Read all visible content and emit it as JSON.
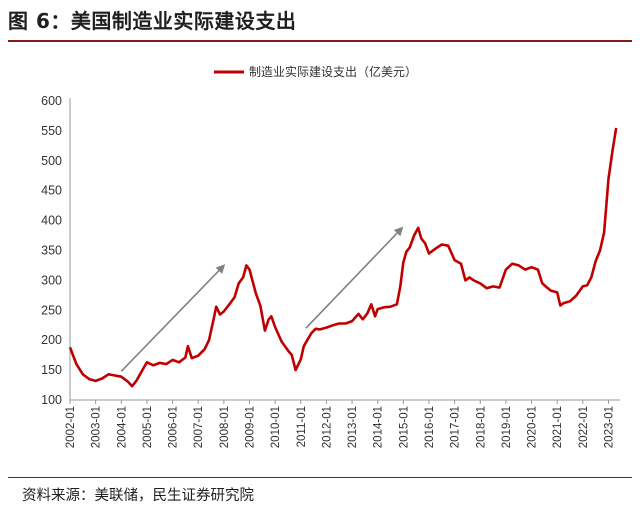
{
  "figure": {
    "title": "图 6：美国制造业实际建设支出",
    "source": "资料来源：美联储，民生证券研究院"
  },
  "colors": {
    "series": "#c00000",
    "arrow": "#808080",
    "rule": "#8b1a1a"
  },
  "chart_data": {
    "type": "line",
    "title": "",
    "xlabel": "",
    "ylabel": "",
    "ylim": [
      100,
      600
    ],
    "yticks": [
      100,
      150,
      200,
      250,
      300,
      350,
      400,
      450,
      500,
      550,
      600
    ],
    "xticks": [
      "2002-01",
      "2003-01",
      "2004-01",
      "2005-01",
      "2006-01",
      "2007-01",
      "2008-01",
      "2009-01",
      "2010-01",
      "2011-01",
      "2012-01",
      "2013-01",
      "2014-01",
      "2015-01",
      "2016-01",
      "2017-01",
      "2018-01",
      "2019-01",
      "2020-01",
      "2021-01",
      "2022-01",
      "2023-01"
    ],
    "grid": false,
    "legend": "top",
    "series": [
      {
        "name": "制造业实际建设支出（亿美元）",
        "x_unit": "year",
        "points": [
          [
            2002.0,
            188
          ],
          [
            2002.25,
            160
          ],
          [
            2002.5,
            143
          ],
          [
            2002.75,
            135
          ],
          [
            2003.0,
            132
          ],
          [
            2003.25,
            136
          ],
          [
            2003.5,
            143
          ],
          [
            2003.75,
            141
          ],
          [
            2004.0,
            139
          ],
          [
            2004.25,
            131
          ],
          [
            2004.42,
            123
          ],
          [
            2004.6,
            133
          ],
          [
            2004.85,
            152
          ],
          [
            2005.0,
            163
          ],
          [
            2005.25,
            158
          ],
          [
            2005.5,
            162
          ],
          [
            2005.75,
            160
          ],
          [
            2006.0,
            167
          ],
          [
            2006.25,
            163
          ],
          [
            2006.5,
            171
          ],
          [
            2006.6,
            190
          ],
          [
            2006.75,
            170
          ],
          [
            2007.0,
            174
          ],
          [
            2007.25,
            185
          ],
          [
            2007.42,
            200
          ],
          [
            2007.6,
            235
          ],
          [
            2007.7,
            256
          ],
          [
            2007.85,
            243
          ],
          [
            2008.0,
            248
          ],
          [
            2008.25,
            262
          ],
          [
            2008.42,
            272
          ],
          [
            2008.58,
            295
          ],
          [
            2008.75,
            305
          ],
          [
            2008.88,
            325
          ],
          [
            2009.0,
            318
          ],
          [
            2009.25,
            278
          ],
          [
            2009.42,
            258
          ],
          [
            2009.6,
            216
          ],
          [
            2009.75,
            235
          ],
          [
            2009.85,
            240
          ],
          [
            2010.0,
            222
          ],
          [
            2010.25,
            198
          ],
          [
            2010.5,
            183
          ],
          [
            2010.65,
            175
          ],
          [
            2010.8,
            150
          ],
          [
            2011.0,
            168
          ],
          [
            2011.12,
            190
          ],
          [
            2011.25,
            200
          ],
          [
            2011.42,
            212
          ],
          [
            2011.58,
            219
          ],
          [
            2011.75,
            218
          ],
          [
            2012.0,
            221
          ],
          [
            2012.25,
            225
          ],
          [
            2012.5,
            228
          ],
          [
            2012.75,
            228
          ],
          [
            2013.0,
            232
          ],
          [
            2013.25,
            244
          ],
          [
            2013.42,
            235
          ],
          [
            2013.6,
            245
          ],
          [
            2013.75,
            260
          ],
          [
            2013.9,
            240
          ],
          [
            2014.0,
            252
          ],
          [
            2014.25,
            255
          ],
          [
            2014.5,
            256
          ],
          [
            2014.75,
            260
          ],
          [
            2014.88,
            290
          ],
          [
            2015.0,
            330
          ],
          [
            2015.12,
            348
          ],
          [
            2015.25,
            355
          ],
          [
            2015.42,
            375
          ],
          [
            2015.58,
            388
          ],
          [
            2015.7,
            370
          ],
          [
            2015.85,
            362
          ],
          [
            2016.0,
            345
          ],
          [
            2016.25,
            353
          ],
          [
            2016.5,
            360
          ],
          [
            2016.75,
            358
          ],
          [
            2017.0,
            334
          ],
          [
            2017.25,
            328
          ],
          [
            2017.42,
            300
          ],
          [
            2017.58,
            305
          ],
          [
            2017.75,
            300
          ],
          [
            2018.0,
            295
          ],
          [
            2018.25,
            287
          ],
          [
            2018.5,
            290
          ],
          [
            2018.75,
            288
          ],
          [
            2019.0,
            318
          ],
          [
            2019.25,
            328
          ],
          [
            2019.5,
            325
          ],
          [
            2019.75,
            318
          ],
          [
            2020.0,
            322
          ],
          [
            2020.25,
            318
          ],
          [
            2020.42,
            295
          ],
          [
            2020.58,
            289
          ],
          [
            2020.75,
            283
          ],
          [
            2021.0,
            280
          ],
          [
            2021.12,
            258
          ],
          [
            2021.25,
            262
          ],
          [
            2021.5,
            265
          ],
          [
            2021.75,
            275
          ],
          [
            2022.0,
            290
          ],
          [
            2022.17,
            292
          ],
          [
            2022.33,
            305
          ],
          [
            2022.5,
            332
          ],
          [
            2022.67,
            350
          ],
          [
            2022.83,
            380
          ],
          [
            2023.0,
            470
          ],
          [
            2023.17,
            520
          ],
          [
            2023.3,
            555
          ]
        ]
      }
    ],
    "annotations": [
      {
        "type": "arrow",
        "from": [
          2004.0,
          148
        ],
        "to": [
          2008.05,
          327
        ]
      },
      {
        "type": "arrow",
        "from": [
          2011.2,
          220
        ],
        "to": [
          2015.0,
          390
        ]
      }
    ]
  }
}
